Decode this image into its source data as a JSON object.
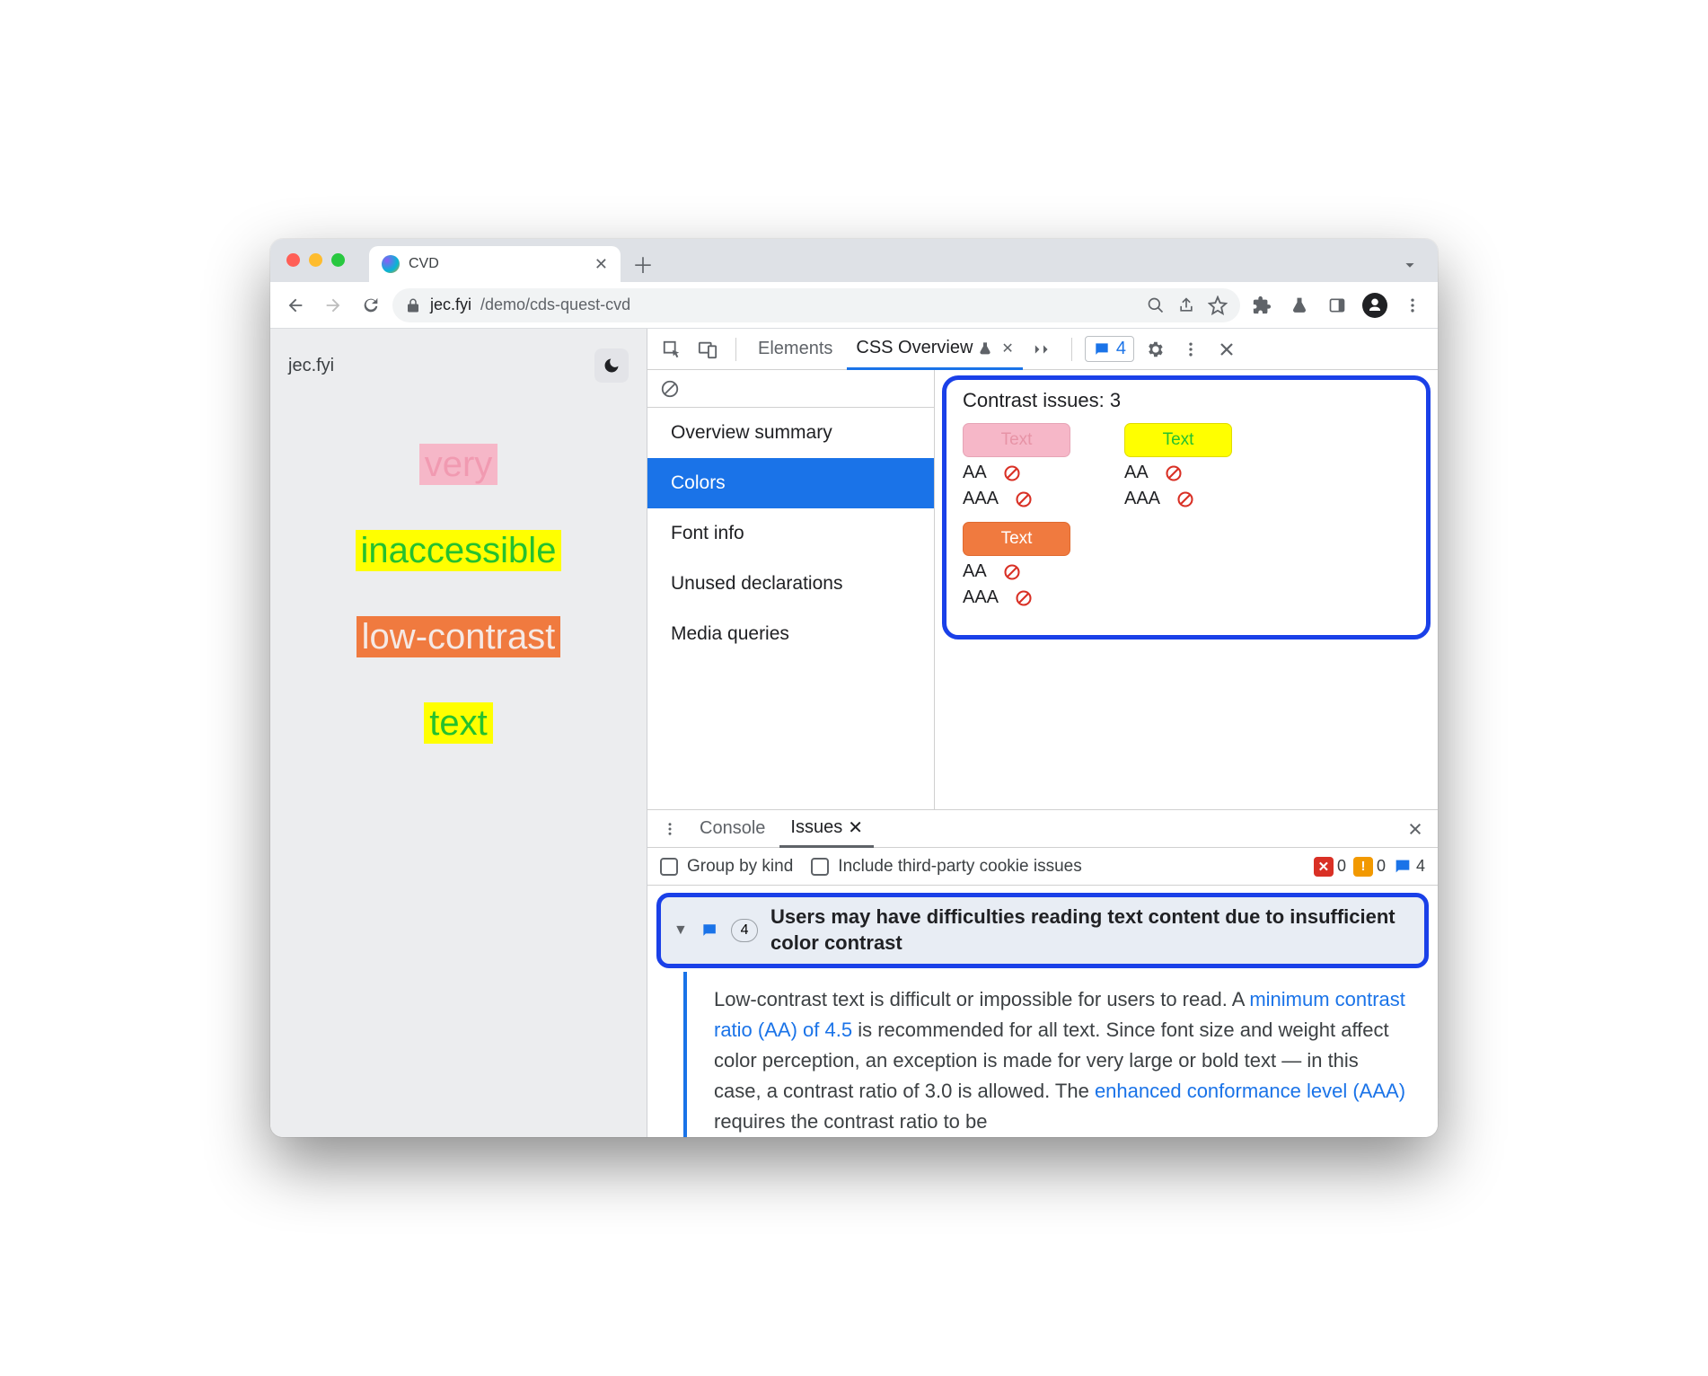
{
  "browser": {
    "tab_title": "CVD",
    "url_host": "jec.fyi",
    "url_path": "/demo/cds-quest-cvd"
  },
  "page": {
    "site_label": "jec.fyi",
    "words": [
      {
        "text": "very",
        "fg": "#f19ab1",
        "bg": "#f6b7c8"
      },
      {
        "text": "inaccessible",
        "fg": "#25c12e",
        "bg": "#ffff00"
      },
      {
        "text": "low-contrast",
        "fg": "#f5e9e5",
        "bg": "#f07a3f"
      },
      {
        "text": "text",
        "fg": "#25c12e",
        "bg": "#ffff00"
      }
    ]
  },
  "devtools": {
    "tabs": {
      "elements": "Elements",
      "css_overview": "CSS Overview"
    },
    "issues_count": 4,
    "overview_sidebar": [
      "Overview summary",
      "Colors",
      "Font info",
      "Unused declarations",
      "Media queries"
    ],
    "overview_selected_index": 1,
    "contrast": {
      "title": "Contrast issues: 3",
      "swatches": [
        {
          "label": "Text",
          "fg": "#e793a6",
          "bg": "#f6b7c8",
          "border": "#e6a4b6"
        },
        {
          "label": "Text",
          "fg": "#25c12e",
          "bg": "#ffff00",
          "border": "#e0db00"
        },
        {
          "label": "Text",
          "fg": "#ffffff",
          "bg": "#f07a3f",
          "border": "#e06a30"
        }
      ],
      "aa_label": "AA",
      "aaa_label": "AAA"
    }
  },
  "drawer": {
    "tabs": {
      "console": "Console",
      "issues": "Issues"
    },
    "group_by_kind": "Group by kind",
    "include_third_party": "Include third-party cookie issues",
    "counts": {
      "errors": 0,
      "warnings": 0,
      "info": 4
    },
    "issue": {
      "count": 4,
      "title": "Users may have difficulties reading text content due to insufficient color contrast",
      "body_pre": "Low-contrast text is difficult or impossible for users to read. A ",
      "link1": "minimum contrast ratio (AA) of 4.5",
      "body_mid": " is recommended for all text. Since font size and weight affect color perception, an exception is made for very large or bold text — in this case, a contrast ratio of 3.0 is allowed. The ",
      "link2": "enhanced conformance level (AAA)",
      "body_post": " requires the contrast ratio to be"
    }
  }
}
